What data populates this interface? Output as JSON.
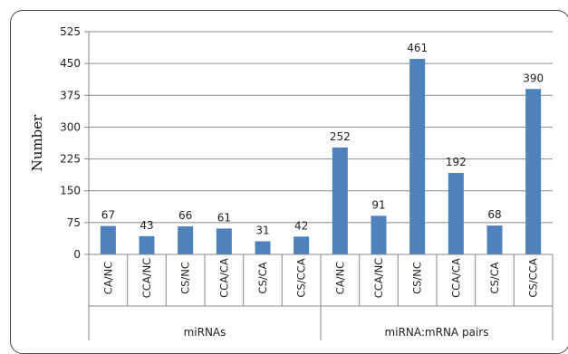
{
  "chart_data": {
    "type": "bar",
    "ylabel": "Number",
    "ylim": [
      0,
      525
    ],
    "yticks": [
      0,
      75,
      150,
      225,
      300,
      375,
      450,
      525
    ],
    "grid": true,
    "bar_color": "#4f81bd",
    "categories": [
      "CA/NC",
      "CCA/NC",
      "CS/NC",
      "CCA/CA",
      "CS/CA",
      "CS/CCA",
      "CA/NC",
      "CCA/NC",
      "CS/NC",
      "CCA/CA",
      "CS/CA",
      "CS/CCA"
    ],
    "values": [
      67,
      43,
      66,
      61,
      31,
      42,
      252,
      91,
      461,
      192,
      68,
      390
    ],
    "groups": [
      {
        "name": "miRNAs",
        "count": 6
      },
      {
        "name": "miRNA:mRNA pairs",
        "count": 6
      }
    ]
  }
}
